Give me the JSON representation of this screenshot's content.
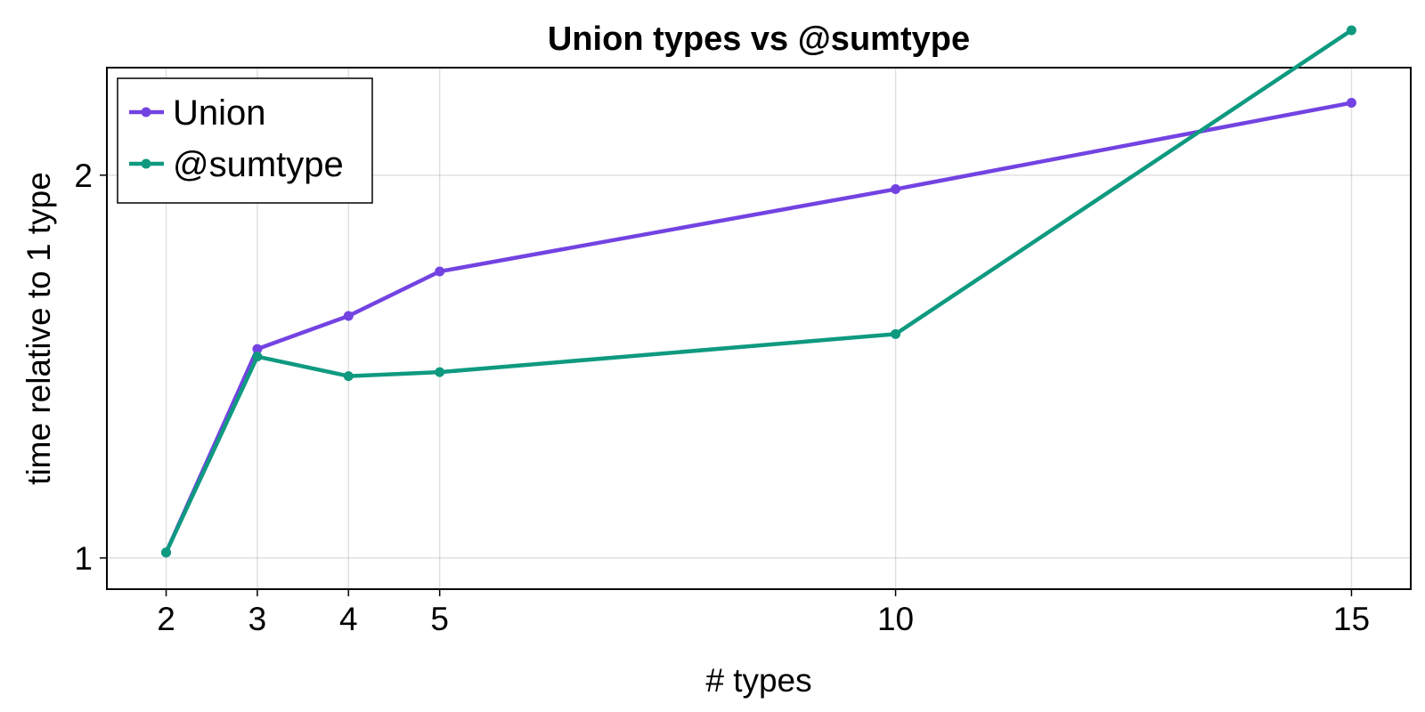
{
  "chart_data": {
    "type": "line",
    "title": "Union types vs @sumtype",
    "xlabel": "# types",
    "ylabel": "time relative to 1 type",
    "y_scale": "log",
    "xlim": [
      1.35,
      15.65
    ],
    "ylim": [
      0.945,
      2.43
    ],
    "x_ticks": [
      2,
      3,
      4,
      5,
      10,
      15
    ],
    "x_tick_labels": [
      "2",
      "3",
      "4",
      "5",
      "10",
      "15"
    ],
    "y_ticks": [
      1,
      2
    ],
    "y_tick_labels": [
      "1",
      "2"
    ],
    "grid": true,
    "legend_position": "top-left",
    "x": [
      2,
      3,
      4,
      5,
      10,
      15
    ],
    "series": [
      {
        "name": "Union",
        "color": "#7343e2",
        "values": [
          1.01,
          1.46,
          1.55,
          1.68,
          1.95,
          2.28
        ]
      },
      {
        "name": "@sumtype",
        "color": "#0f9a80",
        "values": [
          1.01,
          1.44,
          1.39,
          1.4,
          1.5,
          2.6
        ]
      }
    ]
  }
}
